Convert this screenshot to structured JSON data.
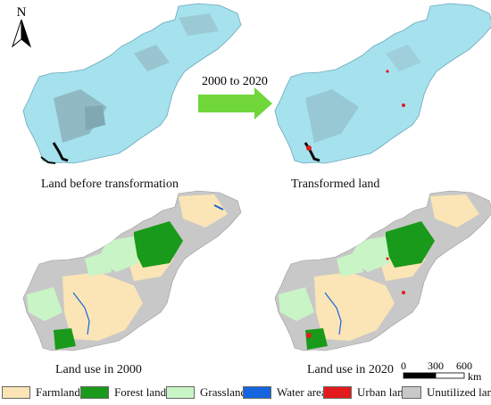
{
  "north_label": "N",
  "arrow_label": "2000 to 2020",
  "panels": {
    "before": "Land before transformation",
    "transformed": "Transformed land",
    "use2000": "Land use in 2000",
    "use2020": "Land use in 2020"
  },
  "scale": {
    "ticks": [
      "0",
      "300",
      "600"
    ],
    "unit": "km"
  },
  "legend": [
    {
      "label": "Farmland",
      "color": "#fbe5b6"
    },
    {
      "label": "Forest land",
      "color": "#1a9a1a"
    },
    {
      "label": "Grassland",
      "color": "#c9f5c6"
    },
    {
      "label": "Water area",
      "color": "#1565e0"
    },
    {
      "label": "Urban land",
      "color": "#e31a1c"
    },
    {
      "label": "Unutilized land",
      "color": "#c8c8c8"
    }
  ],
  "colors": {
    "transform_fill": "#a6e1ee",
    "arrow": "#70d63a",
    "water": "#1565e0",
    "forest": "#1a9a1a",
    "grass": "#c9f5c6",
    "farm": "#fbe5b6",
    "urban": "#e31a1c",
    "unutilized": "#c8c8c8"
  }
}
